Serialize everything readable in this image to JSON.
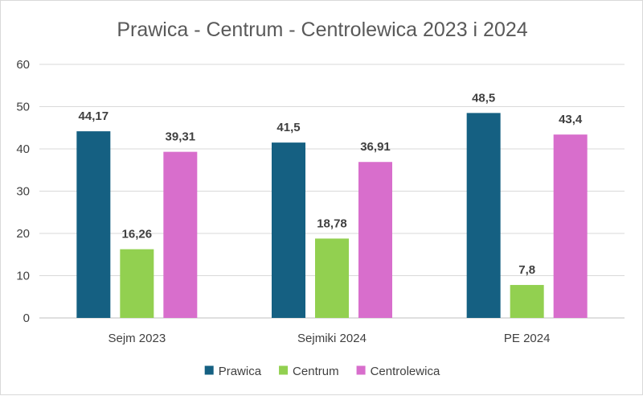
{
  "chart_data": {
    "type": "bar",
    "title": "Prawica - Centrum - Centrolewica 2023 i 2024",
    "categories": [
      "Sejm 2023",
      "Sejmiki 2024",
      "PE 2024"
    ],
    "series": [
      {
        "name": "Prawica",
        "color": "#156082",
        "values": [
          44.17,
          41.5,
          48.5
        ],
        "labels": [
          "44,17",
          "41,5",
          "48,5"
        ]
      },
      {
        "name": "Centrum",
        "color": "#92d050",
        "values": [
          16.26,
          18.78,
          7.8
        ],
        "labels": [
          "16,26",
          "18,78",
          "7,8"
        ]
      },
      {
        "name": "Centrolewica",
        "color": "#d86ecc",
        "values": [
          39.31,
          36.91,
          43.4
        ],
        "labels": [
          "39,31",
          "36,91",
          "43,4"
        ]
      }
    ],
    "ylim": [
      0,
      60
    ],
    "yticks": [
      "0",
      "10",
      "20",
      "30",
      "40",
      "50",
      "60"
    ],
    "grid": true,
    "legend_position": "bottom"
  }
}
